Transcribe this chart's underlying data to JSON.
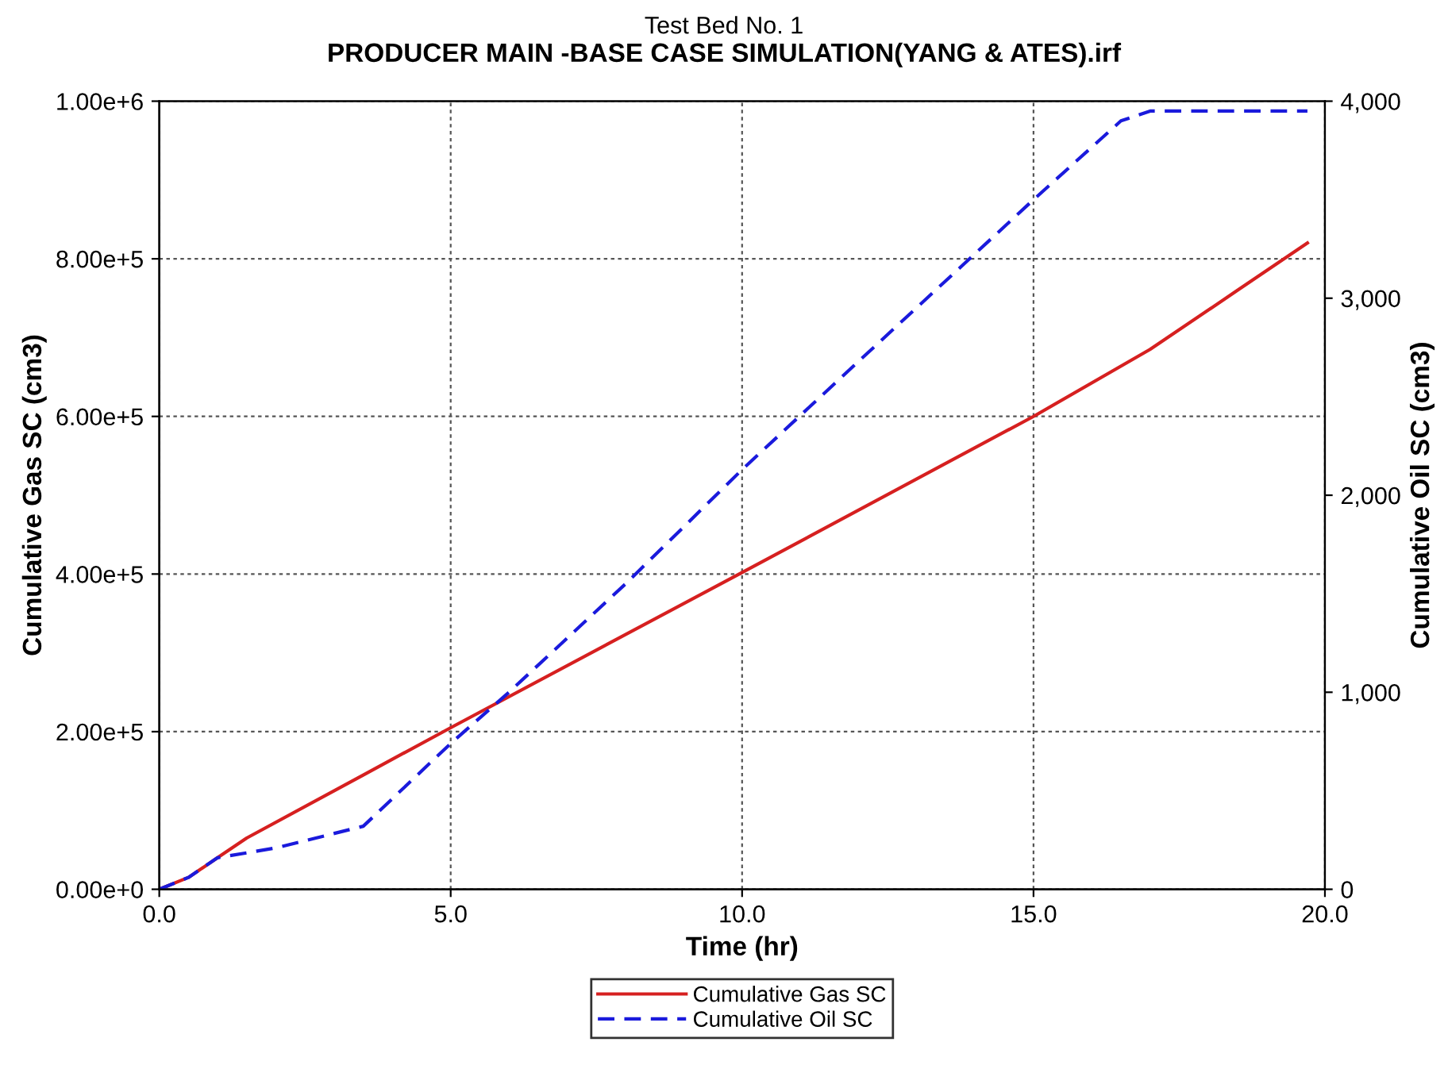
{
  "chart_data": {
    "type": "line",
    "title": "PRODUCER MAIN -BASE CASE SIMULATION(YANG & ATES).irf",
    "subtitle": "Test Bed No. 1",
    "xlabel": "Time (hr)",
    "ylabel": "Cumulative Gas SC (cm3)",
    "y2label": "Cumulative Oil SC (cm3)",
    "xlim": [
      0,
      20
    ],
    "xticks": [
      {
        "value": 0,
        "label": "0.0"
      },
      {
        "value": 5,
        "label": "5.0"
      },
      {
        "value": 10,
        "label": "10.0"
      },
      {
        "value": 15,
        "label": "15.0"
      },
      {
        "value": 20,
        "label": "20.0"
      }
    ],
    "ylim": [
      0,
      1000000
    ],
    "yticks": [
      {
        "value": 0,
        "label": "0.00e+0"
      },
      {
        "value": 200000,
        "label": "2.00e+5"
      },
      {
        "value": 400000,
        "label": "4.00e+5"
      },
      {
        "value": 600000,
        "label": "6.00e+5"
      },
      {
        "value": 800000,
        "label": "8.00e+5"
      },
      {
        "value": 1000000,
        "label": "1.00e+6"
      }
    ],
    "y2lim": [
      0,
      4000
    ],
    "y2ticks": [
      0,
      {
        "value": 1000,
        "label": "1,000"
      },
      {
        "value": 2000,
        "label": "2,000"
      },
      {
        "value": 3000,
        "label": "3,000"
      },
      {
        "value": 4000,
        "label": "4,000"
      }
    ],
    "grid": true,
    "legend": "bottom",
    "series": [
      {
        "name": "Cumulative Gas SC",
        "color": "#d62020",
        "line_style": "solid",
        "x": [
          0,
          0.5,
          1,
          1.5,
          3.5,
          5,
          10,
          15,
          17,
          18.5,
          19.7
        ],
        "values": [
          0,
          15000,
          40000,
          65000,
          145000,
          205000,
          402000,
          600000,
          685000,
          760000,
          820000
        ]
      },
      {
        "name": "Cumulative Oil SC",
        "color": "#1a1adc",
        "line_style": "dashed",
        "axis": "y2",
        "x": [
          0,
          0.5,
          1,
          2,
          3.5,
          5,
          6,
          8,
          10,
          12,
          15,
          16.5,
          17,
          19.7
        ],
        "values": [
          0,
          60,
          160,
          210,
          320,
          740,
          1000,
          1550,
          2130,
          2680,
          3500,
          3900,
          3950,
          3950
        ]
      }
    ]
  }
}
